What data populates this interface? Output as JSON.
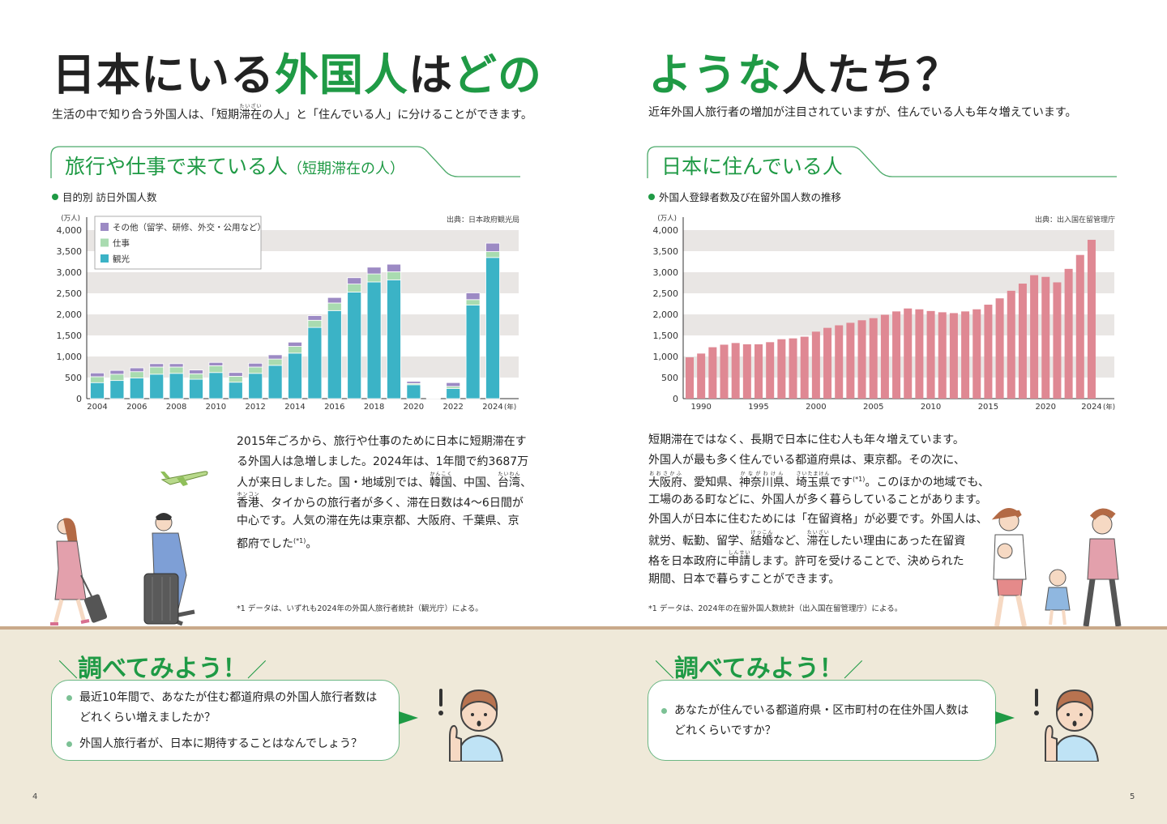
{
  "left_page": {
    "title_parts": [
      {
        "text": "日本にいる",
        "color": "black"
      },
      {
        "text": "外国人",
        "color": "green"
      },
      {
        "text": "は",
        "color": "black"
      },
      {
        "text": "どの",
        "color": "green"
      }
    ],
    "lead": [
      [
        "生活の中で知り合う外国人は、「短期",
        [
          "滞在",
          "たいざい"
        ],
        "の人」と「住んでいる人」に分けることができます。"
      ]
    ],
    "section_title": "旅行や仕事で来ている人",
    "section_subtitle": "（短期滞在の人）",
    "chart_caption": "目的別 訪日外国人数",
    "chart_source": "出典：日本政府観光局",
    "paragraph": [
      [
        "2015年ごろから、旅行や仕事のために日本に短期滞在す"
      ],
      [
        "る外国人は急増しました。2024年は、1年間で約3687万"
      ],
      [
        "人が来日しました。国・地域別では、",
        [
          "韓国",
          "かんこく"
        ],
        "、中国、",
        [
          "台湾",
          "たいわん"
        ],
        "、"
      ],
      [
        [
          "香港",
          "ホンコン"
        ],
        "、タイからの旅行者が多く、滞在日数は4〜6日間が"
      ],
      [
        "中心です。人気の滞在先は東京都、大阪府、千葉県、京"
      ],
      [
        "都府でした",
        {
          "sup": "(*1)"
        },
        "。"
      ]
    ],
    "footnote": "*1 データは、いずれも2024年の外国人旅行者統計（観光庁）による。",
    "check_title": "調べてみよう！",
    "questions": [
      [
        "最近10年間で、あなたが住む都道府県の外国人旅行者数は",
        "どれくらい増えましたか？"
      ],
      [
        "外国人旅行者が、日本に期待することはなんでしょう？"
      ]
    ],
    "page_number": "4"
  },
  "right_page": {
    "title_parts": [
      {
        "text": "ような",
        "color": "green"
      },
      {
        "text": "人たち？",
        "color": "black"
      }
    ],
    "lead": [
      [
        "近年外国人旅行者の増加が注目されていますが、住んでいる人も年々増えています。"
      ]
    ],
    "section_title": "日本に住んでいる人",
    "chart_caption": "外国人登録者数及び在留外国人数の推移",
    "chart_source": "出典：出入国在留管理庁",
    "paragraph": [
      [
        "短期滞在ではなく、長期で日本に住む人も年々増えています。"
      ],
      [
        "外国人が最も多く住んでいる都道府県は、東京都。その次に、"
      ],
      [
        [
          "大阪府",
          "おおさかふ"
        ],
        "、愛知県、",
        [
          "神奈川県",
          "かながわけん"
        ],
        "、",
        [
          "埼玉県",
          "さいたまけん"
        ],
        "です",
        {
          "sup": "(*1)"
        },
        "。このほかの地域でも、"
      ],
      [
        "工場のある町などに、外国人が多く暮らしていることがあります。"
      ],
      [
        "外国人が日本に住むためには「在留資格」が必要です。外国人は、"
      ],
      [
        "就労、転勤、留学、",
        [
          "結婚",
          "けっこん"
        ],
        "など、",
        [
          "滞在",
          "たいざい"
        ],
        "したい理由にあった在留資"
      ],
      [
        "格を日本政府に",
        [
          "申請",
          "しんせい"
        ],
        "します。許可を受けることで、決められた"
      ],
      [
        "期間、日本で暮らすことができます。"
      ]
    ],
    "footnote": "*1 データは、2024年の在留外国人数統計（出入国在留管理庁）による。",
    "check_title": "調べてみよう！",
    "questions": [
      [
        "あなたが住んでいる都道府県・区市町村の在住外国人数は",
        "どれくらいですか？"
      ]
    ],
    "page_number": "5"
  },
  "colors": {
    "accent_green": "#1f9a45",
    "tourism": "#3bb3c6",
    "business": "#a9dbb0",
    "other": "#9c8ac4",
    "residents": "#df8893",
    "grid_band": "#e9e6e4",
    "bottom_bg": "#efe9d9"
  },
  "icons": [
    "airplane-icon",
    "exclamation-icon",
    "thinking-boy-icon",
    "travelers-illustration",
    "family-illustration"
  ],
  "chart_data": [
    {
      "type": "bar",
      "stacked": true,
      "title": "目的別 訪日外国人数",
      "unit_label": "(万人)",
      "x_unit": "(年)",
      "ylim": [
        0,
        4000
      ],
      "yticks": [
        "0",
        "500",
        "1,000",
        "1,500",
        "2,000",
        "2,500",
        "3,000",
        "3,500",
        "4,000"
      ],
      "yticks_values": [
        0,
        500,
        1000,
        1500,
        2000,
        2500,
        3000,
        3500,
        4000
      ],
      "xtick_labels": [
        "2004",
        "2006",
        "2008",
        "2010",
        "2012",
        "2014",
        "2016",
        "2018",
        "2020",
        "2022",
        "2024"
      ],
      "categories": [
        2004,
        2005,
        2006,
        2007,
        2008,
        2009,
        2010,
        2011,
        2012,
        2013,
        2014,
        2015,
        2016,
        2017,
        2018,
        2019,
        2020,
        2021,
        2022,
        2023,
        2024
      ],
      "legend_position": "top-left",
      "grid": "alternating bands",
      "series": [
        {
          "name": "観光",
          "color": "#3bb3c6",
          "values": [
            380,
            430,
            490,
            580,
            600,
            460,
            620,
            390,
            600,
            790,
            1080,
            1690,
            2090,
            2530,
            2770,
            2820,
            330,
            5,
            240,
            2220,
            3350
          ]
        },
        {
          "name": "仕事",
          "color": "#a9dbb0",
          "values": [
            140,
            150,
            150,
            170,
            150,
            130,
            160,
            140,
            150,
            150,
            160,
            170,
            180,
            190,
            190,
            190,
            30,
            3,
            50,
            130,
            140
          ]
        },
        {
          "name": "その他（留学、研修、外交・公用など）",
          "color": "#9c8ac4",
          "values": [
            90,
            90,
            90,
            80,
            80,
            90,
            80,
            90,
            90,
            100,
            100,
            110,
            130,
            150,
            160,
            180,
            50,
            7,
            90,
            160,
            200
          ]
        }
      ],
      "legend_order": [
        "その他（留学、研修、外交・公用など）",
        "仕事",
        "観光"
      ]
    },
    {
      "type": "bar",
      "title": "外国人登録者数及び在留外国人数の推移",
      "unit_label": "(万人)",
      "x_unit": "(年)",
      "ylim": [
        0,
        4000
      ],
      "yticks": [
        "0",
        "500",
        "1,000",
        "1,500",
        "2,000",
        "2,500",
        "3,000",
        "3,500",
        "4,000"
      ],
      "yticks_values": [
        0,
        500,
        1000,
        1500,
        2000,
        2500,
        3000,
        3500,
        4000
      ],
      "xtick_labels": [
        "1990",
        "1995",
        "2000",
        "2005",
        "2010",
        "2015",
        "2020",
        "2024"
      ],
      "categories": [
        1989,
        1990,
        1991,
        1992,
        1993,
        1994,
        1995,
        1996,
        1997,
        1998,
        1999,
        2000,
        2001,
        2002,
        2003,
        2004,
        2005,
        2006,
        2007,
        2008,
        2009,
        2010,
        2011,
        2012,
        2013,
        2014,
        2015,
        2016,
        2017,
        2018,
        2019,
        2020,
        2021,
        2022,
        2023,
        2024
      ],
      "grid": "alternating bands",
      "series": [
        {
          "color": "#df8893",
          "values": [
            980,
            1070,
            1220,
            1280,
            1320,
            1290,
            1290,
            1340,
            1410,
            1430,
            1470,
            1590,
            1680,
            1740,
            1800,
            1860,
            1910,
            1990,
            2070,
            2140,
            2120,
            2080,
            2050,
            2030,
            2070,
            2120,
            2230,
            2380,
            2560,
            2730,
            2930,
            2890,
            2760,
            3080,
            3410,
            3770
          ]
        }
      ]
    }
  ]
}
